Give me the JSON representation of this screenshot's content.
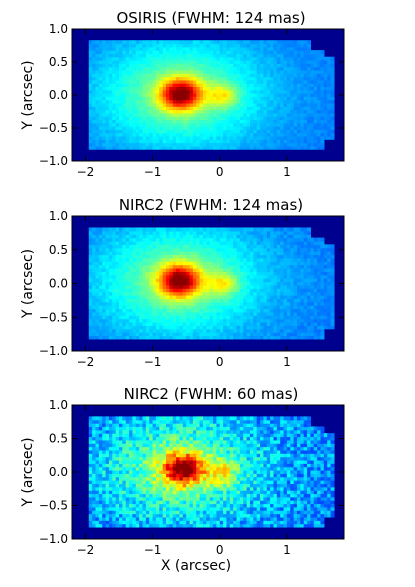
{
  "chart_data": [
    {
      "type": "heatmap",
      "title": "OSIRIS (FWHM: 124 mas)",
      "xlabel": "",
      "ylabel": "Y (arcsec)",
      "xlim": [
        -2.2,
        1.85
      ],
      "ylim": [
        -1.0,
        1.0
      ],
      "xticks": [
        "−2",
        "−1",
        "0",
        "1"
      ],
      "yticks": [
        "1.0",
        "0.5",
        "0.0",
        "−0.5",
        "−1.0"
      ],
      "xtick_values": [
        -2,
        -1,
        0,
        1
      ],
      "ytick_values": [
        1.0,
        0.5,
        0.0,
        -0.5,
        -1.0
      ],
      "colormap": "jet",
      "background_color": "#00008f",
      "peak": {
        "x": -0.58,
        "y": 0.02
      },
      "pixel_scale_arcsec": 0.05,
      "noise": 0.04
    },
    {
      "type": "heatmap",
      "title": "NIRC2 (FWHM: 124 mas)",
      "xlabel": "",
      "ylabel": "Y (arcsec)",
      "xlim": [
        -2.2,
        1.85
      ],
      "ylim": [
        -1.0,
        1.0
      ],
      "xticks": [
        "−2",
        "−1",
        "0",
        "1"
      ],
      "yticks": [
        "1.0",
        "0.5",
        "0.0",
        "−0.5",
        "−1.0"
      ],
      "xtick_values": [
        -2,
        -1,
        0,
        1
      ],
      "ytick_values": [
        1.0,
        0.5,
        0.0,
        -0.5,
        -1.0
      ],
      "colormap": "jet",
      "background_color": "#00008f",
      "peak": {
        "x": -0.6,
        "y": 0.05
      },
      "pixel_scale_arcsec": 0.05,
      "noise": 0.05
    },
    {
      "type": "heatmap",
      "title": "NIRC2 (FWHM: 60 mas)",
      "xlabel": "X (arcsec)",
      "ylabel": "Y (arcsec)",
      "xlim": [
        -2.2,
        1.85
      ],
      "ylim": [
        -1.0,
        1.0
      ],
      "xticks": [
        "−2",
        "−1",
        "0",
        "1"
      ],
      "yticks": [
        "1.0",
        "0.5",
        "0.0",
        "−0.5",
        "−1.0"
      ],
      "xtick_values": [
        -2,
        -1,
        0,
        1
      ],
      "ytick_values": [
        1.0,
        0.5,
        0.0,
        -0.5,
        -1.0
      ],
      "colormap": "jet",
      "background_color": "#00008f",
      "peak": {
        "x": -0.55,
        "y": 0.05
      },
      "pixel_scale_arcsec": 0.05,
      "noise": 0.12
    }
  ]
}
